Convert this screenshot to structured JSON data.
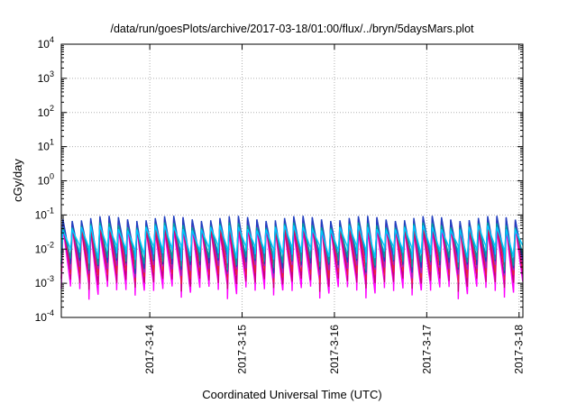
{
  "chart_data": {
    "type": "line",
    "title": "/data/run/goesPlots/archive/2017-03-18/01:00/flux/../bryn/5daysMars.plot",
    "xlabel": "Coordinated Universal Time (UTC)",
    "ylabel": "cGy/day",
    "yscale": "log",
    "ylim": [
      0.0001,
      10000
    ],
    "xlim": [
      "2017-03-13 01:00",
      "2017-03-18 01:00"
    ],
    "x_ticks": [
      "2017-3-14",
      "2017-3-15",
      "2017-3-16",
      "2017-3-17",
      "2017-3-18"
    ],
    "y_ticks": [
      {
        "base": "10",
        "exp": "4"
      },
      {
        "base": "10",
        "exp": "3"
      },
      {
        "base": "10",
        "exp": "2"
      },
      {
        "base": "10",
        "exp": "1"
      },
      {
        "base": "10",
        "exp": "0"
      },
      {
        "base": "10",
        "exp": "-1"
      },
      {
        "base": "10",
        "exp": "-2"
      },
      {
        "base": "10",
        "exp": "-3"
      },
      {
        "base": "10",
        "exp": "-4"
      }
    ],
    "grid": true,
    "legend": "none",
    "sawtooth_period_hours": 2.4,
    "series": [
      {
        "color": "#ff00ff",
        "peak": 0.045,
        "trough": 0.0007
      },
      {
        "color": "#c8007a",
        "peak": 0.055,
        "trough": 0.0012
      },
      {
        "color": "#e8203c",
        "peak": 0.07,
        "trough": 0.002
      },
      {
        "color": "#a020c8",
        "peak": 0.085,
        "trough": 0.003
      },
      {
        "color": "#2040c0",
        "peak": 0.095,
        "trough": 0.004
      },
      {
        "color": "#00a0a0",
        "peak": 0.06,
        "trough": 0.005
      },
      {
        "color": "#00c8ff",
        "peak": 0.05,
        "trough": 0.008
      }
    ]
  }
}
